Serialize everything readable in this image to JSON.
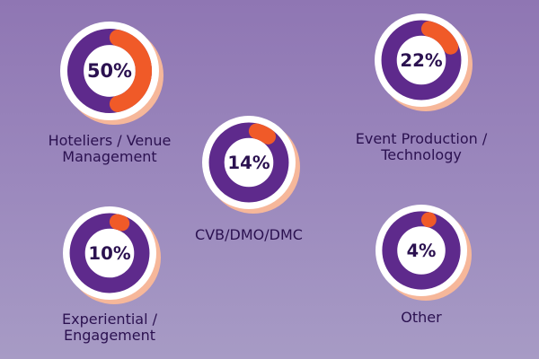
{
  "colors": {
    "ring": "#5e2a8c",
    "arc": "#f05a28",
    "shadow": "#f6b79a",
    "face": "#ffffff",
    "text": "#2b1150"
  },
  "chart_data": {
    "type": "donut",
    "items": [
      {
        "label_lines": [
          "Hoteliers / Venue",
          "Management"
        ],
        "value": 50,
        "display": "50%"
      },
      {
        "label_lines": [
          "Event Production /",
          "Technology"
        ],
        "value": 22,
        "display": "22%"
      },
      {
        "label_lines": [
          "CVB/DMO/DMC"
        ],
        "value": 14,
        "display": "14%"
      },
      {
        "label_lines": [
          "Experiential /",
          "Engagement"
        ],
        "value": 10,
        "display": "10%"
      },
      {
        "label_lines": [
          "Other"
        ],
        "value": 4,
        "display": "4%"
      }
    ]
  }
}
